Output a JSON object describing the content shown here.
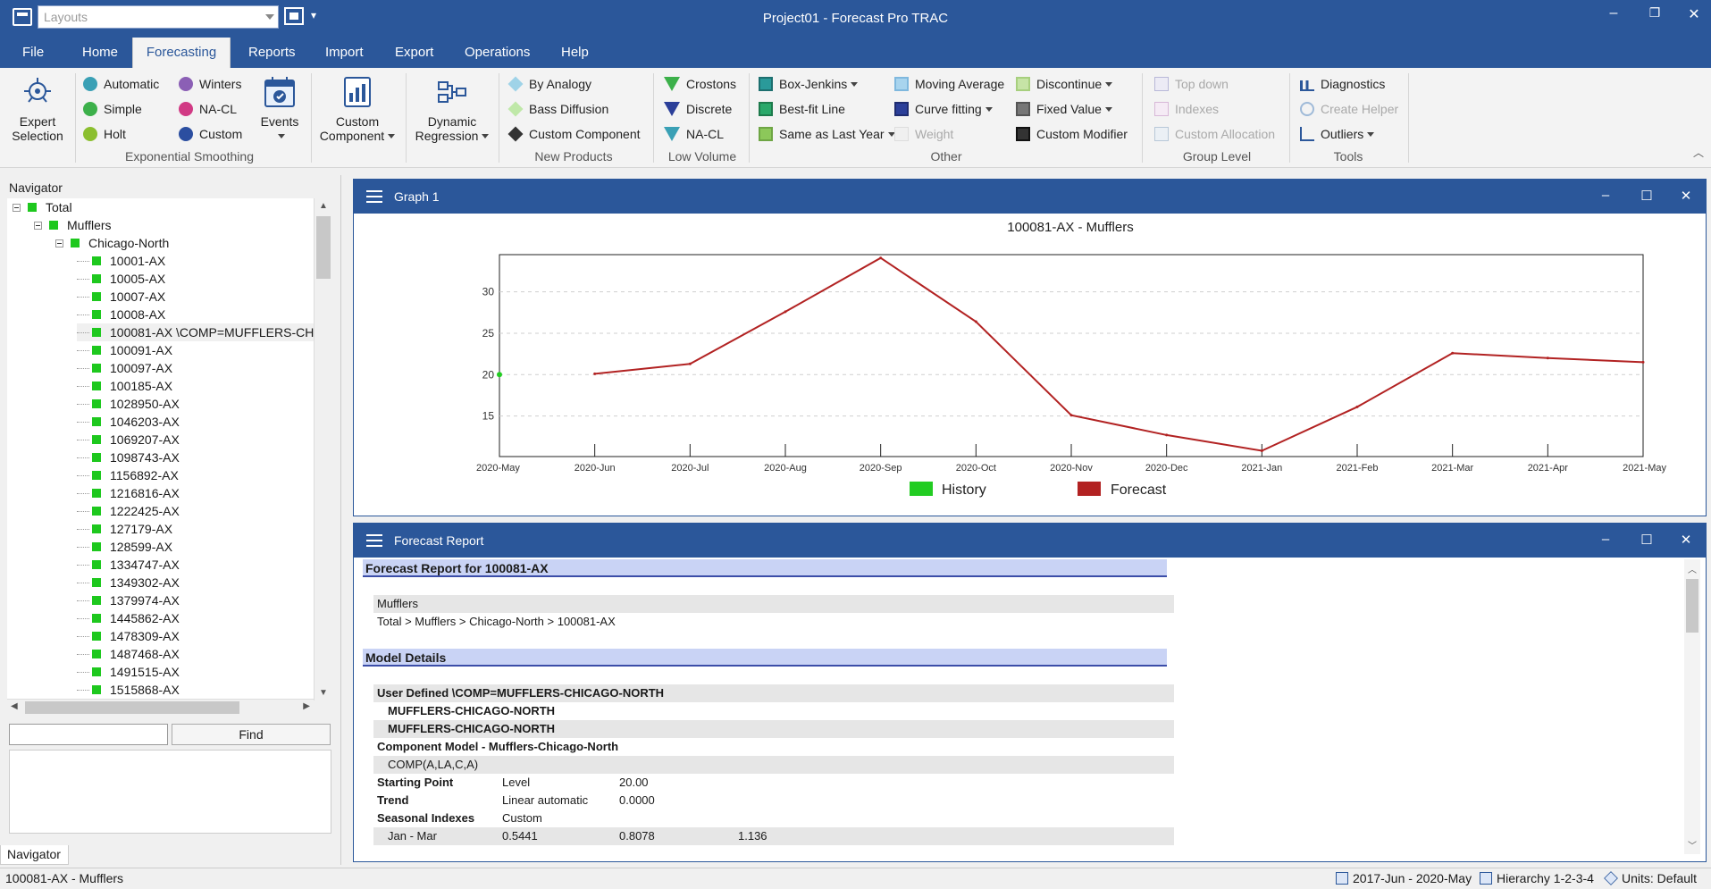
{
  "titlebar": {
    "layouts_placeholder": "Layouts",
    "window_title": "Project01 - Forecast Pro TRAC",
    "minimize": "–",
    "restore": "❐",
    "close": "✕"
  },
  "menu": {
    "tabs": [
      "File",
      "Home",
      "Forecasting",
      "Reports",
      "Import",
      "Export",
      "Operations",
      "Help"
    ],
    "active": "Forecasting"
  },
  "ribbon": {
    "expert_selection": "Expert Selection",
    "exp_smoothing": {
      "items": [
        "Automatic",
        "Simple",
        "Holt",
        "Winters",
        "NA-CL",
        "Custom"
      ],
      "label": "Exponential Smoothing"
    },
    "events": "Events",
    "custom_component": "Custom Component",
    "dynamic_regression": "Dynamic Regression",
    "new_products": {
      "items": [
        "By Analogy",
        "Bass Diffusion",
        "Custom Component"
      ],
      "label": "New Products"
    },
    "low_volume": {
      "items": [
        "Crostons",
        "Discrete",
        "NA-CL"
      ],
      "label": "Low Volume"
    },
    "other": {
      "items": [
        "Box-Jenkins",
        "Best-fit Line",
        "Same as Last Year",
        "Moving Average",
        "Curve fitting",
        "Weight",
        "Discontinue",
        "Fixed Value",
        "Custom Modifier"
      ],
      "label": "Other"
    },
    "group_level": {
      "items": [
        "Top down",
        "Indexes",
        "Custom Allocation"
      ],
      "label": "Group Level"
    },
    "tools": {
      "items": [
        "Diagnostics",
        "Create Helper",
        "Outliers"
      ],
      "label": "Tools"
    }
  },
  "navigator": {
    "title": "Navigator",
    "tree": [
      {
        "label": "Total",
        "level": 0
      },
      {
        "label": "Mufflers",
        "level": 1
      },
      {
        "label": "Chicago-North",
        "level": 2
      },
      {
        "label": "10001-AX",
        "level": 3
      },
      {
        "label": "10005-AX",
        "level": 3
      },
      {
        "label": "10007-AX",
        "level": 3
      },
      {
        "label": "10008-AX",
        "level": 3
      },
      {
        "label": "100081-AX \\COMP=MUFFLERS-CH",
        "level": 3
      },
      {
        "label": "100091-AX",
        "level": 3
      },
      {
        "label": "100097-AX",
        "level": 3
      },
      {
        "label": "100185-AX",
        "level": 3
      },
      {
        "label": "1028950-AX",
        "level": 3
      },
      {
        "label": "1046203-AX",
        "level": 3
      },
      {
        "label": "1069207-AX",
        "level": 3
      },
      {
        "label": "1098743-AX",
        "level": 3
      },
      {
        "label": "1156892-AX",
        "level": 3
      },
      {
        "label": "1216816-AX",
        "level": 3
      },
      {
        "label": "1222425-AX",
        "level": 3
      },
      {
        "label": "127179-AX",
        "level": 3
      },
      {
        "label": "128599-AX",
        "level": 3
      },
      {
        "label": "1334747-AX",
        "level": 3
      },
      {
        "label": "1349302-AX",
        "level": 3
      },
      {
        "label": "1379974-AX",
        "level": 3
      },
      {
        "label": "1445862-AX",
        "level": 3
      },
      {
        "label": "1478309-AX",
        "level": 3
      },
      {
        "label": "1487468-AX",
        "level": 3
      },
      {
        "label": "1491515-AX",
        "level": 3
      },
      {
        "label": "1515868-AX",
        "level": 3
      }
    ],
    "find_label": "Find",
    "tab_label": "Navigator"
  },
  "graph_panel": {
    "title": "Graph 1"
  },
  "chart_data": {
    "type": "line",
    "title": "100081-AX - Mufflers",
    "x": [
      "2020-May",
      "2020-Jun",
      "2020-Jul",
      "2020-Aug",
      "2020-Sep",
      "2020-Oct",
      "2020-Nov",
      "2020-Dec",
      "2021-Jan",
      "2021-Feb",
      "2021-Mar",
      "2021-Apr",
      "2021-May"
    ],
    "series": [
      {
        "name": "History",
        "color": "#22cc22",
        "values": [
          20.0,
          null,
          null,
          null,
          null,
          null,
          null,
          null,
          null,
          null,
          null,
          null,
          null
        ]
      },
      {
        "name": "Forecast",
        "color": "#b22222",
        "values": [
          null,
          20.1,
          21.3,
          27.6,
          34.1,
          26.4,
          15.1,
          12.7,
          10.8,
          16.1,
          22.6,
          22.0,
          21.5
        ]
      }
    ],
    "yticks": [
      15,
      20,
      25,
      30
    ],
    "ylim": [
      10.1,
      34.5
    ],
    "grid": true,
    "legend": "bottom"
  },
  "report_panel": {
    "title": "Forecast Report",
    "header": "Forecast Report for 100081-AX",
    "item_name": "Mufflers",
    "path": "Total > Mufflers > Chicago-North > 100081-AX",
    "model_details": "Model Details",
    "user_defined": "User Defined \\COMP=MUFFLERS-CHICAGO-NORTH",
    "comp1": "MUFFLERS-CHICAGO-NORTH",
    "comp2": "MUFFLERS-CHICAGO-NORTH",
    "component_model": "Component Model - Mufflers-Chicago-North",
    "comp_formula": "COMP(A,LA,C,A)",
    "starting_point": {
      "label": "Starting Point",
      "type": "Level",
      "value": "20.00"
    },
    "trend": {
      "label": "Trend",
      "type": "Linear automatic",
      "value": "0.0000"
    },
    "seasonal": {
      "label": "Seasonal Indexes",
      "type": "Custom"
    },
    "season_row": {
      "label": "Jan - Mar",
      "v1": "0.5441",
      "v2": "0.8078",
      "v3": "1.136"
    }
  },
  "statusbar": {
    "left": "100081-AX - Mufflers",
    "date_range": "2017-Jun - 2020-May",
    "hierarchy": "Hierarchy 1-2-3-4",
    "units": "Units: Default"
  }
}
